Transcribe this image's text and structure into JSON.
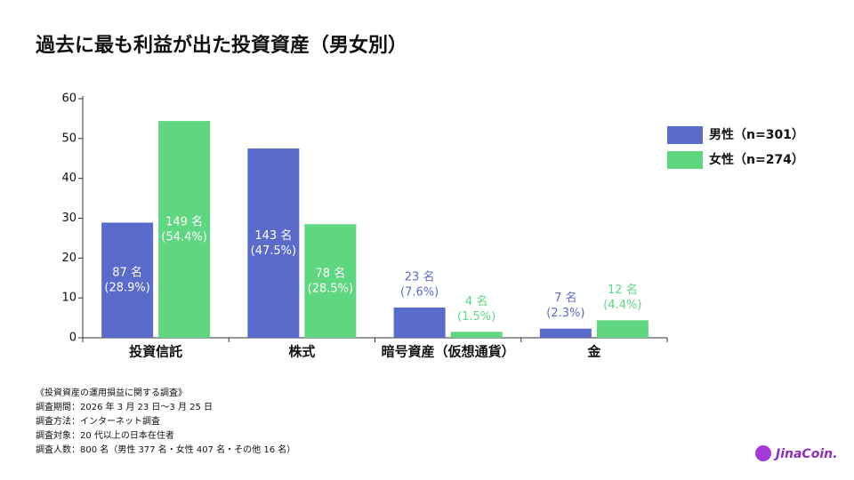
{
  "chart_data": {
    "type": "bar",
    "title": "過去に最も利益が出た投資資産（男女別）",
    "categories": [
      "投資信託",
      "株式",
      "暗号資産（仮想通貨）",
      "金"
    ],
    "series": [
      {
        "name": "男性（n=301）",
        "color": "#5b6bcb",
        "values": [
          28.9,
          47.5,
          7.6,
          2.3
        ],
        "value_labels": [
          "(28.9%)",
          "(47.5%)",
          "(7.6%)",
          "(2.3%)"
        ],
        "count_labels": [
          "87 名",
          "143 名",
          "23 名",
          "7 名"
        ]
      },
      {
        "name": "女性（n=274）",
        "color": "#5fd680",
        "values": [
          54.4,
          28.5,
          1.5,
          4.4
        ],
        "value_labels": [
          "(54.4%)",
          "(28.5%)",
          "(1.5%)",
          "(4.4%)"
        ],
        "count_labels": [
          "149 名",
          "78 名",
          "4 名",
          "12 名"
        ]
      }
    ],
    "ylim": [
      0,
      60
    ],
    "yticks": [
      0,
      10,
      20,
      30,
      40,
      50,
      60
    ],
    "grid": false,
    "legend": "right"
  },
  "notes": [
    "《投資資産の運用損益に関する調査》",
    "調査期間：2026 年 3 月 23 日〜3 月 25 日",
    "調査方法：インターネット調査",
    "調査対象：20 代以上の日本在住者",
    "調査人数：800 名（男性 377 名・女性 407 名・その他 16 名）"
  ],
  "logo": "JinaCoin."
}
